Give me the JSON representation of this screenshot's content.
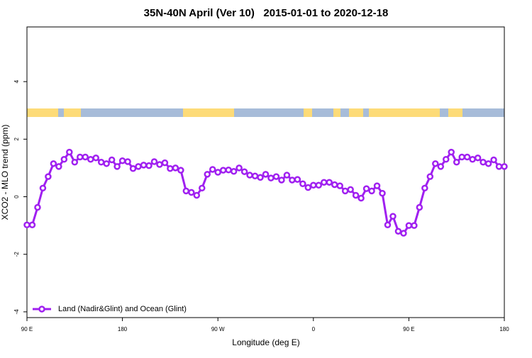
{
  "chart_data": {
    "type": "line",
    "title": "35N-40N April (Ver 10)   2015-01-01 to 2020-12-18",
    "xlabel": "Longitude (deg E)",
    "ylabel": "XCO2 - MLO trend (ppm)",
    "xlim": [
      90,
      540
    ],
    "ylim": [
      -4.2,
      5.9
    ],
    "xticks": [
      {
        "value": 90,
        "label": "90 E"
      },
      {
        "value": 180,
        "label": "180"
      },
      {
        "value": 270,
        "label": "90 W"
      },
      {
        "value": 360,
        "label": "0"
      },
      {
        "value": 450,
        "label": "90 E"
      },
      {
        "value": 540,
        "label": "180"
      }
    ],
    "yticks": [
      -4,
      -2,
      0,
      2,
      4
    ],
    "legend": "bottomleft",
    "x": [
      90,
      95,
      100,
      105,
      110,
      115,
      120,
      125,
      130,
      135,
      140,
      145,
      150,
      155,
      160,
      165,
      170,
      175,
      180,
      185,
      190,
      195,
      200,
      205,
      210,
      215,
      220,
      225,
      230,
      235,
      240,
      245,
      250,
      255,
      260,
      265,
      270,
      275,
      280,
      285,
      290,
      295,
      300,
      305,
      310,
      315,
      320,
      325,
      330,
      335,
      340,
      345,
      350,
      355,
      360,
      365,
      370,
      375,
      380,
      385,
      390,
      395,
      400,
      405,
      410,
      415,
      420,
      425,
      430,
      435,
      440,
      445,
      450,
      455,
      460,
      465,
      470,
      475,
      480,
      485,
      490,
      495,
      500,
      505,
      510,
      515,
      520,
      525,
      530,
      535,
      540
    ],
    "series": [
      {
        "name": "Land (Nadir&Glint) and Ocean (Glint)",
        "color": "#a020f0",
        "values": [
          -0.98,
          -0.98,
          -0.37,
          0.3,
          0.7,
          1.15,
          1.05,
          1.3,
          1.55,
          1.2,
          1.38,
          1.38,
          1.3,
          1.35,
          1.2,
          1.15,
          1.28,
          1.05,
          1.25,
          1.22,
          0.98,
          1.05,
          1.1,
          1.08,
          1.22,
          1.12,
          1.18,
          0.98,
          1.0,
          0.92,
          0.2,
          0.15,
          0.05,
          0.3,
          0.78,
          0.95,
          0.85,
          0.92,
          0.93,
          0.88,
          1.0,
          0.87,
          0.75,
          0.72,
          0.67,
          0.78,
          0.65,
          0.7,
          0.58,
          0.75,
          0.58,
          0.6,
          0.45,
          0.32,
          0.4,
          0.4,
          0.5,
          0.5,
          0.42,
          0.38,
          0.2,
          0.25,
          0.05,
          -0.05,
          0.28,
          0.2,
          0.38,
          0.12,
          -0.98,
          -0.68,
          -1.2,
          -1.27,
          -1.0,
          -1.0,
          -0.37,
          0.3,
          0.7,
          1.15,
          1.05,
          1.3,
          1.55,
          1.2,
          1.38,
          1.38,
          1.3,
          1.35,
          1.2,
          1.15,
          1.28,
          1.05,
          1.05
        ]
      }
    ]
  }
}
